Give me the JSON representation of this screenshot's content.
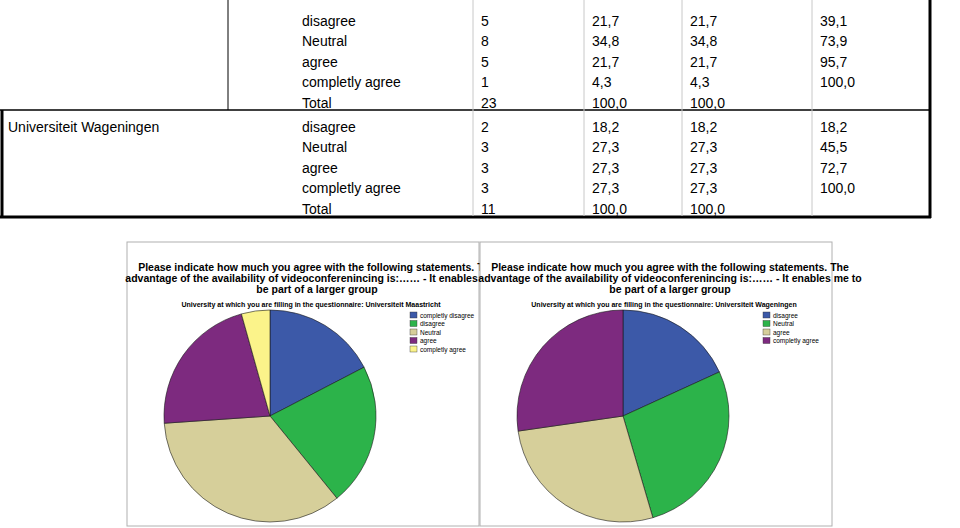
{
  "table": {
    "groups": [
      {
        "rows": [
          [
            "disagree",
            "5",
            "21,7",
            "21,7",
            "39,1"
          ],
          [
            "Neutral",
            "8",
            "34,8",
            "34,8",
            "73,9"
          ],
          [
            "agree",
            "5",
            "21,7",
            "21,7",
            "95,7"
          ],
          [
            "completly agree",
            "1",
            "4,3",
            "4,3",
            "100,0"
          ],
          [
            "Total",
            "23",
            "100,0",
            "100,0"
          ]
        ]
      },
      {
        "label": "Universiteit Wageningen",
        "rows": [
          [
            "disagree",
            "2",
            "18,2",
            "18,2",
            "18,2"
          ],
          [
            "Neutral",
            "3",
            "27,3",
            "27,3",
            "45,5"
          ],
          [
            "agree",
            "3",
            "27,3",
            "27,3",
            "72,7"
          ],
          [
            "completly agree",
            "3",
            "27,3",
            "27,3",
            "100,0"
          ],
          [
            "Total",
            "11",
            "100,0",
            "100,0"
          ]
        ]
      }
    ]
  },
  "chart_data": [
    {
      "type": "pie",
      "title": "Please indicate how much you agree with the following statements. The\nadvantage of the availability of videoconferenincing is:…… - It enables me to\nbe part of a larger group",
      "subtitle": "University at which you are filling in the questionnaire: Universiteit Maastricht",
      "categories": [
        "completly disagree",
        "disagree",
        "Neutral",
        "agree",
        "completly agree"
      ],
      "values": [
        4,
        5,
        8,
        5,
        1
      ],
      "colors": [
        "#3c59a8",
        "#2cb34a",
        "#d6cf9a",
        "#7d2a7f",
        "#fbf38a"
      ],
      "legend": "top-right"
    },
    {
      "type": "pie",
      "title": "Please indicate how much you agree with the following statements. The\nadvantage of the availability of videoconferenincing is:…… - It enables me to\nbe part of a larger group",
      "subtitle": "University at which you are filling in the questionnaire: Universiteit Wageningen",
      "categories": [
        "disagree",
        "Neutral",
        "agree",
        "completly agree"
      ],
      "values": [
        2,
        3,
        3,
        3
      ],
      "colors": [
        "#3c59a8",
        "#2cb34a",
        "#d6cf9a",
        "#7d2a7f"
      ],
      "legend": "top-right"
    }
  ]
}
